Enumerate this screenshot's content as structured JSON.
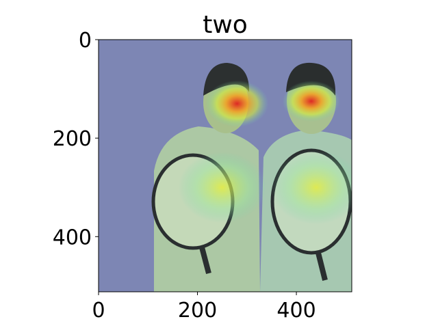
{
  "chart_data": {
    "type": "heatmap",
    "title": "two",
    "xlabel": "",
    "ylabel": "",
    "xlim": [
      0,
      512
    ],
    "ylim": [
      512,
      0
    ],
    "x_ticks": [
      0,
      200,
      400
    ],
    "y_ticks": [
      0,
      200,
      400
    ],
    "x_tick_labels": [
      "0",
      "200",
      "400"
    ],
    "y_tick_labels": [
      "0",
      "200",
      "400"
    ],
    "grid": false,
    "image_description_colors": {
      "background": "#7d86b4",
      "low": "#4a64c8",
      "mid": "#d8ef3a",
      "high": "#e02020"
    },
    "hotspots": [
      {
        "x": 280,
        "y": 130,
        "intensity": 0.9
      },
      {
        "x": 430,
        "y": 125,
        "intensity": 1.0
      },
      {
        "x": 250,
        "y": 300,
        "intensity": 0.45
      },
      {
        "x": 440,
        "y": 300,
        "intensity": 0.4
      }
    ]
  }
}
